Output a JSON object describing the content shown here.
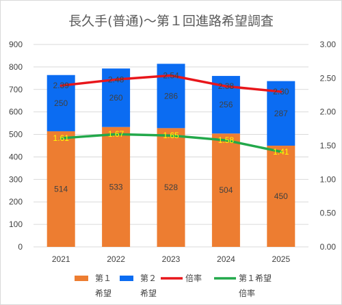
{
  "chart_data": {
    "type": "bar",
    "title": "長久手(普通)〜第１回進路希望調査",
    "categories": [
      "2021",
      "2022",
      "2023",
      "2024",
      "2025"
    ],
    "stacked": true,
    "series": [
      {
        "name": "第１\n希望",
        "kind": "bar",
        "axis": "left",
        "color": "#ed7d31",
        "values": [
          514,
          533,
          528,
          504,
          450
        ]
      },
      {
        "name": "第２\n希望",
        "kind": "bar",
        "axis": "left",
        "color": "#0b6cf2",
        "values": [
          250,
          260,
          286,
          256,
          287
        ]
      },
      {
        "name": "倍率",
        "kind": "line",
        "axis": "right",
        "color": "#e8161b",
        "values": [
          2.39,
          2.48,
          2.54,
          2.38,
          2.3
        ]
      },
      {
        "name": "第１希望\n倍率",
        "kind": "line",
        "axis": "right",
        "color": "#22a84a",
        "values": [
          1.61,
          1.67,
          1.65,
          1.58,
          1.41
        ]
      }
    ],
    "value_labels": {
      "s0": [
        "514",
        "533",
        "528",
        "504",
        "450"
      ],
      "s1": [
        "250",
        "260",
        "286",
        "256",
        "287"
      ],
      "s2": [
        "2.39",
        "2.48",
        "2.54",
        "2.38",
        "2.30"
      ],
      "s3": [
        "1.61",
        "1.67",
        "1.65",
        "1.58",
        "1.41"
      ]
    },
    "y_left": {
      "min": 0,
      "max": 900,
      "step": 100,
      "ticks": [
        "0",
        "100",
        "200",
        "300",
        "400",
        "500",
        "600",
        "700",
        "800",
        "900"
      ]
    },
    "y_right": {
      "min": 0,
      "max": 3.0,
      "step": 0.5,
      "ticks": [
        "0.00",
        "0.50",
        "1.00",
        "1.50",
        "2.00",
        "2.50",
        "3.00"
      ]
    },
    "grid": true,
    "legend_position": "bottom",
    "colors": {
      "grid": "#d9d9d9",
      "text": "#404040",
      "title": "#595959"
    }
  }
}
